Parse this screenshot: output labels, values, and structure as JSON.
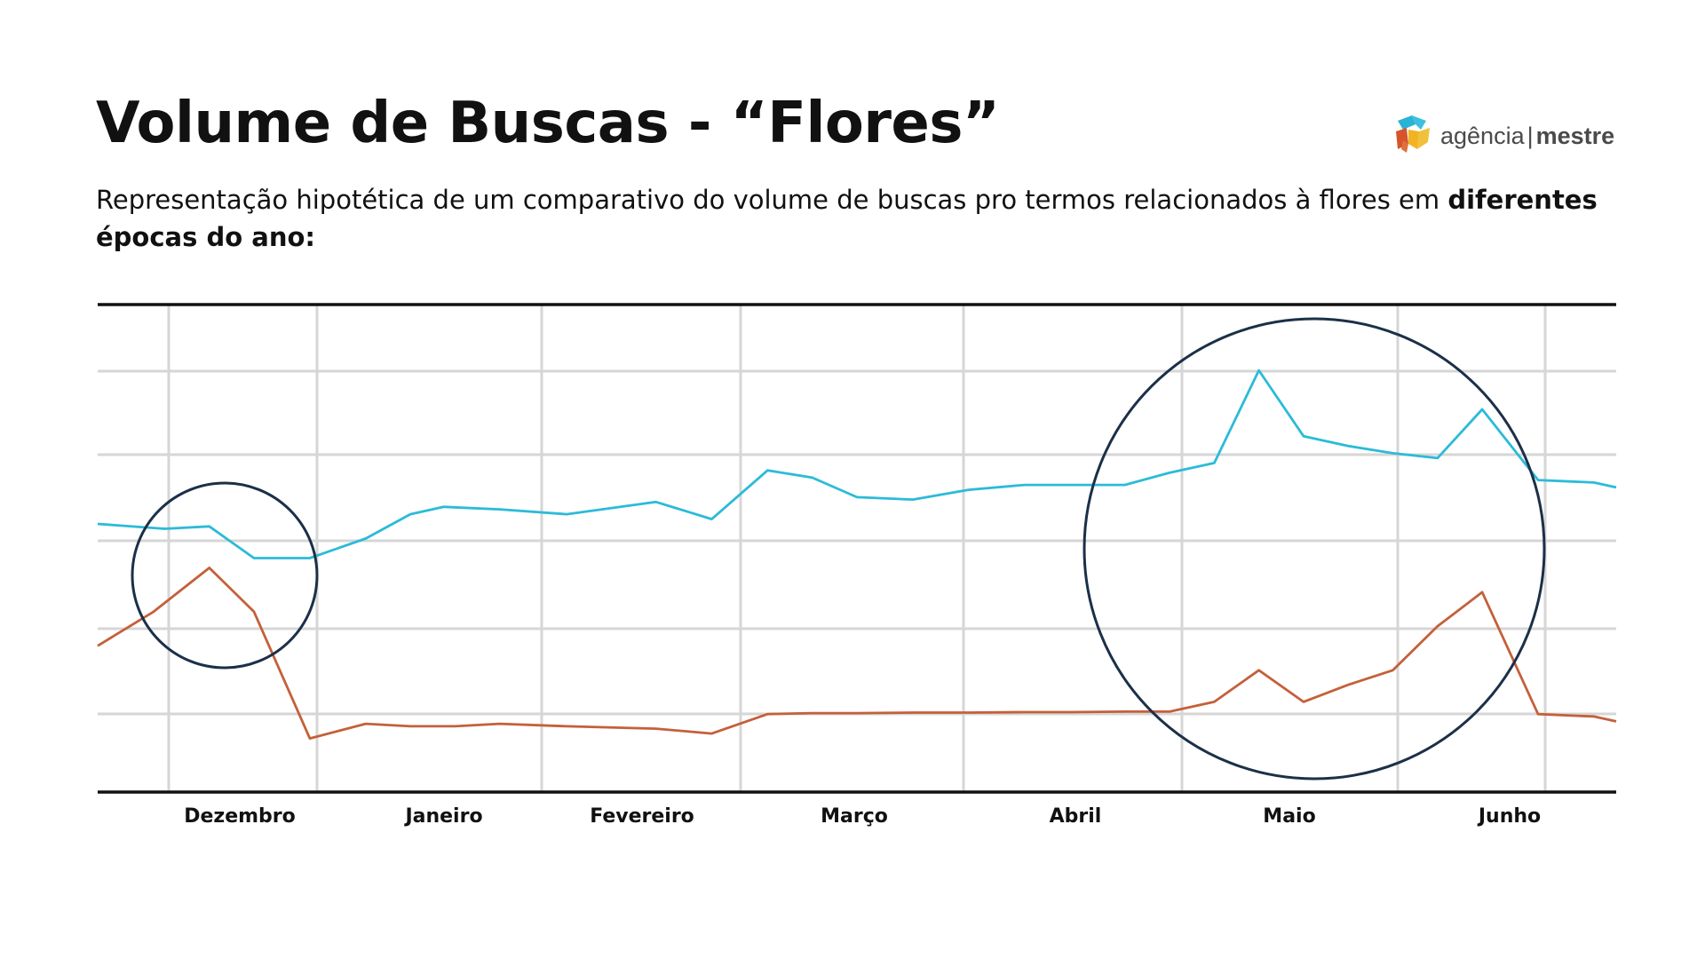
{
  "header": {
    "title": "Volume de Buscas - “Flores”",
    "subtitle_regular": "Representação hipotética de um comparativo do volume de buscas pro termos relacionados à flores em ",
    "subtitle_bold": "diferentes épocas do ano",
    "subtitle_end": ":"
  },
  "logo": {
    "text_left": "agência",
    "separator": "|",
    "text_right": "mestre",
    "icon": "agencia-mestre-logo-icon"
  },
  "chart_data": {
    "type": "line",
    "title": "",
    "xlabel": "",
    "ylabel": "",
    "categories": [
      "Dezembro",
      "Janeiro",
      "Fevereiro",
      "Março",
      "Abril",
      "Maio",
      "Junho"
    ],
    "x_range": [
      0,
      34
    ],
    "ylim": [
      0,
      100
    ],
    "grid": true,
    "legend": "none",
    "series": [
      {
        "color": "#2bbbd8",
        "x": [
          0,
          1.5,
          2.5,
          3.5,
          4.75,
          6,
          7,
          7.75,
          9,
          10.5,
          12.5,
          13.75,
          15,
          16,
          17,
          18.25,
          19.5,
          20.75,
          21.75,
          23,
          24,
          25,
          26,
          27,
          28,
          29,
          30,
          31,
          32.25,
          33.5,
          34
        ],
        "values": [
          55,
          54,
          54.5,
          48,
          48,
          52,
          57,
          58.5,
          58,
          57,
          59.5,
          56,
          66,
          64.5,
          60.5,
          60,
          62,
          63,
          63,
          63,
          65.5,
          67.5,
          86.5,
          73,
          71,
          69.5,
          68.5,
          78.5,
          64,
          63.5,
          62.5
        ]
      },
      {
        "color": "#c4603a",
        "x": [
          0,
          1.25,
          2.5,
          3.5,
          4.75,
          6,
          7,
          8,
          9,
          10.5,
          12.5,
          13.75,
          15,
          16,
          17,
          18.25,
          19.5,
          20.75,
          21.75,
          23,
          24,
          25,
          26,
          27,
          28,
          29,
          30,
          31,
          32.25,
          33.5,
          34
        ],
        "values": [
          30,
          37,
          46,
          37,
          11,
          14,
          13.5,
          13.5,
          14,
          13.5,
          13,
          12,
          16,
          16.2,
          16.2,
          16.3,
          16.3,
          16.4,
          16.4,
          16.5,
          16.5,
          18.5,
          25,
          18.5,
          22,
          25,
          34,
          41,
          16,
          15.5,
          14.5
        ]
      }
    ]
  }
}
